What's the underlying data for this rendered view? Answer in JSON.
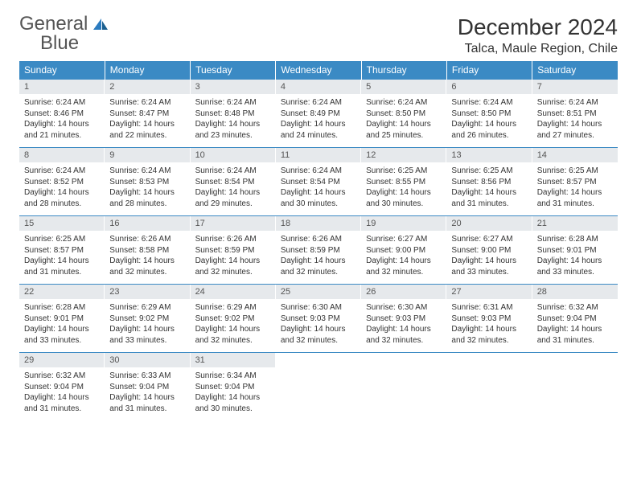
{
  "logo": {
    "part1": "General",
    "part2": "Blue"
  },
  "header": {
    "title": "December 2024",
    "location": "Talca, Maule Region, Chile"
  },
  "colors": {
    "header_bg": "#3b8ac4",
    "header_text": "#ffffff",
    "daynum_bg": "#e6e9ec",
    "body_text": "#333333",
    "rule": "#3b8ac4",
    "logo_gray": "#555555",
    "logo_blue": "#2b7bbf"
  },
  "days_of_week": [
    "Sunday",
    "Monday",
    "Tuesday",
    "Wednesday",
    "Thursday",
    "Friday",
    "Saturday"
  ],
  "weeks": [
    [
      {
        "n": "1",
        "sunrise": "6:24 AM",
        "sunset": "8:46 PM",
        "dl": "14 hours and 21 minutes."
      },
      {
        "n": "2",
        "sunrise": "6:24 AM",
        "sunset": "8:47 PM",
        "dl": "14 hours and 22 minutes."
      },
      {
        "n": "3",
        "sunrise": "6:24 AM",
        "sunset": "8:48 PM",
        "dl": "14 hours and 23 minutes."
      },
      {
        "n": "4",
        "sunrise": "6:24 AM",
        "sunset": "8:49 PM",
        "dl": "14 hours and 24 minutes."
      },
      {
        "n": "5",
        "sunrise": "6:24 AM",
        "sunset": "8:50 PM",
        "dl": "14 hours and 25 minutes."
      },
      {
        "n": "6",
        "sunrise": "6:24 AM",
        "sunset": "8:50 PM",
        "dl": "14 hours and 26 minutes."
      },
      {
        "n": "7",
        "sunrise": "6:24 AM",
        "sunset": "8:51 PM",
        "dl": "14 hours and 27 minutes."
      }
    ],
    [
      {
        "n": "8",
        "sunrise": "6:24 AM",
        "sunset": "8:52 PM",
        "dl": "14 hours and 28 minutes."
      },
      {
        "n": "9",
        "sunrise": "6:24 AM",
        "sunset": "8:53 PM",
        "dl": "14 hours and 28 minutes."
      },
      {
        "n": "10",
        "sunrise": "6:24 AM",
        "sunset": "8:54 PM",
        "dl": "14 hours and 29 minutes."
      },
      {
        "n": "11",
        "sunrise": "6:24 AM",
        "sunset": "8:54 PM",
        "dl": "14 hours and 30 minutes."
      },
      {
        "n": "12",
        "sunrise": "6:25 AM",
        "sunset": "8:55 PM",
        "dl": "14 hours and 30 minutes."
      },
      {
        "n": "13",
        "sunrise": "6:25 AM",
        "sunset": "8:56 PM",
        "dl": "14 hours and 31 minutes."
      },
      {
        "n": "14",
        "sunrise": "6:25 AM",
        "sunset": "8:57 PM",
        "dl": "14 hours and 31 minutes."
      }
    ],
    [
      {
        "n": "15",
        "sunrise": "6:25 AM",
        "sunset": "8:57 PM",
        "dl": "14 hours and 31 minutes."
      },
      {
        "n": "16",
        "sunrise": "6:26 AM",
        "sunset": "8:58 PM",
        "dl": "14 hours and 32 minutes."
      },
      {
        "n": "17",
        "sunrise": "6:26 AM",
        "sunset": "8:59 PM",
        "dl": "14 hours and 32 minutes."
      },
      {
        "n": "18",
        "sunrise": "6:26 AM",
        "sunset": "8:59 PM",
        "dl": "14 hours and 32 minutes."
      },
      {
        "n": "19",
        "sunrise": "6:27 AM",
        "sunset": "9:00 PM",
        "dl": "14 hours and 32 minutes."
      },
      {
        "n": "20",
        "sunrise": "6:27 AM",
        "sunset": "9:00 PM",
        "dl": "14 hours and 33 minutes."
      },
      {
        "n": "21",
        "sunrise": "6:28 AM",
        "sunset": "9:01 PM",
        "dl": "14 hours and 33 minutes."
      }
    ],
    [
      {
        "n": "22",
        "sunrise": "6:28 AM",
        "sunset": "9:01 PM",
        "dl": "14 hours and 33 minutes."
      },
      {
        "n": "23",
        "sunrise": "6:29 AM",
        "sunset": "9:02 PM",
        "dl": "14 hours and 33 minutes."
      },
      {
        "n": "24",
        "sunrise": "6:29 AM",
        "sunset": "9:02 PM",
        "dl": "14 hours and 32 minutes."
      },
      {
        "n": "25",
        "sunrise": "6:30 AM",
        "sunset": "9:03 PM",
        "dl": "14 hours and 32 minutes."
      },
      {
        "n": "26",
        "sunrise": "6:30 AM",
        "sunset": "9:03 PM",
        "dl": "14 hours and 32 minutes."
      },
      {
        "n": "27",
        "sunrise": "6:31 AM",
        "sunset": "9:03 PM",
        "dl": "14 hours and 32 minutes."
      },
      {
        "n": "28",
        "sunrise": "6:32 AM",
        "sunset": "9:04 PM",
        "dl": "14 hours and 31 minutes."
      }
    ],
    [
      {
        "n": "29",
        "sunrise": "6:32 AM",
        "sunset": "9:04 PM",
        "dl": "14 hours and 31 minutes."
      },
      {
        "n": "30",
        "sunrise": "6:33 AM",
        "sunset": "9:04 PM",
        "dl": "14 hours and 31 minutes."
      },
      {
        "n": "31",
        "sunrise": "6:34 AM",
        "sunset": "9:04 PM",
        "dl": "14 hours and 30 minutes."
      },
      null,
      null,
      null,
      null
    ]
  ],
  "labels": {
    "sunrise": "Sunrise:",
    "sunset": "Sunset:",
    "daylight": "Daylight:"
  }
}
